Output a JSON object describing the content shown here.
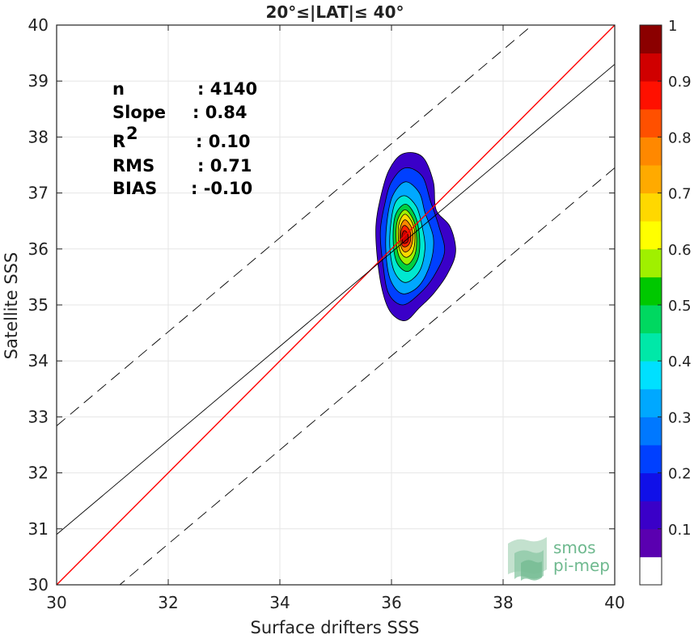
{
  "chart_data": {
    "type": "heatmap",
    "title": "20°≤|LAT|≤ 40°",
    "xlabel": "Surface drifters SSS",
    "ylabel": "Satellite SSS",
    "xlim": [
      30,
      40
    ],
    "ylim": [
      30,
      40
    ],
    "xticks": [
      "30",
      "32",
      "34",
      "36",
      "38",
      "40"
    ],
    "yticks": [
      "30",
      "31",
      "32",
      "33",
      "34",
      "35",
      "36",
      "37",
      "38",
      "39",
      "40"
    ],
    "grid": true,
    "stats": [
      {
        "label": "n",
        "sep": ":",
        "value": "4140"
      },
      {
        "label": "Slope",
        "sep": ":",
        "value": "0.84"
      },
      {
        "label": "R",
        "sup": "2",
        "sep": ":",
        "value": "0.10"
      },
      {
        "label": "RMS",
        "sep": ":",
        "value": "0.71"
      },
      {
        "label": "BIAS",
        "sep": ":",
        "value": "-0.10"
      }
    ],
    "lines": [
      {
        "name": "identity",
        "color": "#ff0000",
        "slope": 1,
        "intercept": 0,
        "style": "solid"
      },
      {
        "name": "fit",
        "color": "#000000",
        "slope": 0.84,
        "intercept": 5.7,
        "style": "solid"
      },
      {
        "name": "upper-bound",
        "color": "#000000",
        "slope": 0.84,
        "intercept": 7.64,
        "style": "dashed"
      },
      {
        "name": "lower-bound",
        "color": "#000000",
        "slope": 0.84,
        "intercept": 3.85,
        "style": "dashed"
      }
    ],
    "density": {
      "center": [
        36.2,
        36.2
      ],
      "contours": [
        {
          "level": 0.05,
          "color": "#3a00c8",
          "poly": [
            [
              36.2,
              37.7
            ],
            [
              36.55,
              37.65
            ],
            [
              36.75,
              37.2
            ],
            [
              36.8,
              36.7
            ],
            [
              37.05,
              36.4
            ],
            [
              37.15,
              35.95
            ],
            [
              37.0,
              35.55
            ],
            [
              36.75,
              35.2
            ],
            [
              36.5,
              34.95
            ],
            [
              36.25,
              34.72
            ],
            [
              36.0,
              34.85
            ],
            [
              35.85,
              35.2
            ],
            [
              35.75,
              35.8
            ],
            [
              35.72,
              36.4
            ],
            [
              35.8,
              36.9
            ],
            [
              35.95,
              37.4
            ]
          ]
        },
        {
          "level": 0.15,
          "color": "#0040ff",
          "poly": [
            [
              36.25,
              37.45
            ],
            [
              36.55,
              37.3
            ],
            [
              36.7,
              36.85
            ],
            [
              36.85,
              36.4
            ],
            [
              36.95,
              35.95
            ],
            [
              36.75,
              35.5
            ],
            [
              36.5,
              35.2
            ],
            [
              36.2,
              35.0
            ],
            [
              35.95,
              35.2
            ],
            [
              35.85,
              35.7
            ],
            [
              35.8,
              36.3
            ],
            [
              35.88,
              36.8
            ],
            [
              36.0,
              37.2
            ]
          ]
        },
        {
          "level": 0.25,
          "color": "#00a8ff",
          "poly": [
            [
              36.25,
              37.2
            ],
            [
              36.5,
              37.0
            ],
            [
              36.6,
              36.65
            ],
            [
              36.75,
              36.2
            ],
            [
              36.7,
              35.75
            ],
            [
              36.5,
              35.35
            ],
            [
              36.2,
              35.2
            ],
            [
              35.98,
              35.45
            ],
            [
              35.9,
              35.95
            ],
            [
              35.92,
              36.5
            ],
            [
              36.02,
              36.95
            ]
          ]
        },
        {
          "level": 0.35,
          "color": "#00e8d0",
          "poly": [
            [
              36.25,
              36.95
            ],
            [
              36.45,
              36.75
            ],
            [
              36.55,
              36.4
            ],
            [
              36.6,
              36.0
            ],
            [
              36.5,
              35.6
            ],
            [
              36.25,
              35.4
            ],
            [
              36.05,
              35.6
            ],
            [
              35.97,
              36.05
            ],
            [
              36.0,
              36.55
            ],
            [
              36.08,
              36.85
            ]
          ]
        },
        {
          "level": 0.45,
          "color": "#00d040",
          "poly": [
            [
              36.25,
              36.8
            ],
            [
              36.42,
              36.6
            ],
            [
              36.5,
              36.25
            ],
            [
              36.48,
              35.85
            ],
            [
              36.3,
              35.6
            ],
            [
              36.1,
              35.75
            ],
            [
              36.03,
              36.15
            ],
            [
              36.07,
              36.6
            ]
          ]
        },
        {
          "level": 0.55,
          "color": "#a0f000",
          "poly": [
            [
              36.25,
              36.7
            ],
            [
              36.4,
              36.5
            ],
            [
              36.45,
              36.2
            ],
            [
              36.42,
              35.9
            ],
            [
              36.28,
              35.72
            ],
            [
              36.13,
              35.88
            ],
            [
              36.08,
              36.25
            ],
            [
              36.12,
              36.55
            ]
          ]
        },
        {
          "level": 0.65,
          "color": "#ffd800",
          "poly": [
            [
              36.25,
              36.62
            ],
            [
              36.38,
              36.45
            ],
            [
              36.42,
              36.2
            ],
            [
              36.38,
              35.95
            ],
            [
              36.26,
              35.85
            ],
            [
              36.15,
              35.98
            ],
            [
              36.12,
              36.3
            ],
            [
              36.15,
              36.5
            ]
          ]
        },
        {
          "level": 0.75,
          "color": "#ff8800",
          "poly": [
            [
              36.25,
              36.52
            ],
            [
              36.36,
              36.38
            ],
            [
              36.38,
              36.18
            ],
            [
              36.33,
              36.0
            ],
            [
              36.23,
              35.95
            ],
            [
              36.16,
              36.08
            ],
            [
              36.15,
              36.3
            ],
            [
              36.18,
              36.45
            ]
          ]
        },
        {
          "level": 0.85,
          "color": "#ff2000",
          "poly": [
            [
              36.24,
              36.42
            ],
            [
              36.33,
              36.32
            ],
            [
              36.34,
              36.15
            ],
            [
              36.28,
              36.05
            ],
            [
              36.2,
              36.05
            ],
            [
              36.17,
              36.18
            ],
            [
              36.18,
              36.35
            ]
          ]
        },
        {
          "level": 0.92,
          "color": "#c80000",
          "poly": [
            [
              36.23,
              36.33
            ],
            [
              36.29,
              36.27
            ],
            [
              36.3,
              36.15
            ],
            [
              36.25,
              36.1
            ],
            [
              36.2,
              36.12
            ],
            [
              36.19,
              36.25
            ]
          ]
        }
      ]
    },
    "colorbar": {
      "range": [
        0,
        1
      ],
      "ticks": [
        "0.1",
        "0.2",
        "0.3",
        "0.4",
        "0.5",
        "0.6",
        "0.7",
        "0.8",
        "0.9",
        "1"
      ],
      "colors": [
        "#ffffff",
        "#5a00b0",
        "#3a00c8",
        "#1010e8",
        "#0040ff",
        "#0078ff",
        "#00a8ff",
        "#00e0ff",
        "#00e8a8",
        "#00d860",
        "#00c800",
        "#a0f000",
        "#ffff00",
        "#ffd800",
        "#ffaa00",
        "#ff8800",
        "#ff5000",
        "#ff1000",
        "#d00000",
        "#8b0000"
      ]
    }
  },
  "watermark": {
    "line1": "smos",
    "line2": "pi-mep"
  }
}
